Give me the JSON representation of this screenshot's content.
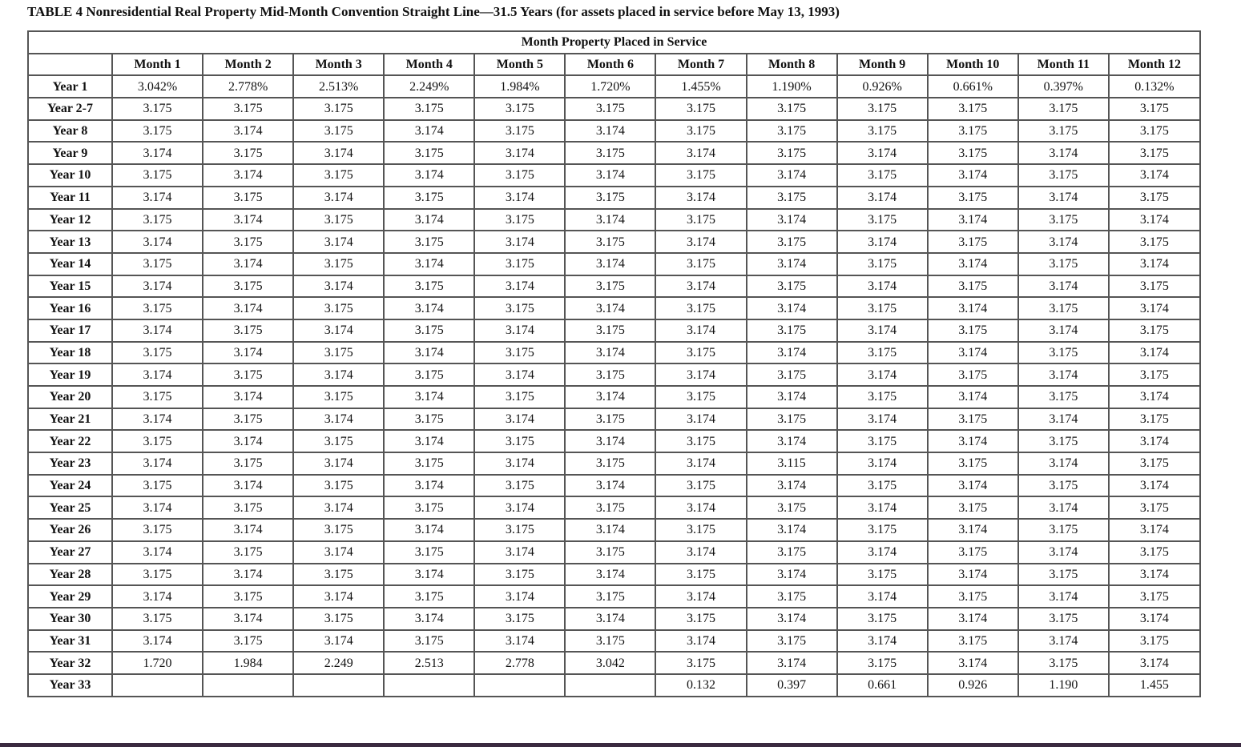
{
  "title": "TABLE 4 Nonresidential Real Property Mid-Month Convention Straight Line—31.5 Years (for assets placed in service before May 13, 1993)",
  "table": {
    "group_header": "Month Property Placed in Service",
    "columns": [
      "Month 1",
      "Month 2",
      "Month 3",
      "Month 4",
      "Month 5",
      "Month 6",
      "Month 7",
      "Month 8",
      "Month 9",
      "Month 10",
      "Month 11",
      "Month 12"
    ],
    "rows": [
      {
        "label": "Year 1",
        "values": [
          "3.042%",
          "2.778%",
          "2.513%",
          "2.249%",
          "1.984%",
          "1.720%",
          "1.455%",
          "1.190%",
          "0.926%",
          "0.661%",
          "0.397%",
          "0.132%"
        ]
      },
      {
        "label": "Year 2-7",
        "values": [
          "3.175",
          "3.175",
          "3.175",
          "3.175",
          "3.175",
          "3.175",
          "3.175",
          "3.175",
          "3.175",
          "3.175",
          "3.175",
          "3.175"
        ]
      },
      {
        "label": "Year 8",
        "values": [
          "3.175",
          "3.174",
          "3.175",
          "3.174",
          "3.175",
          "3.174",
          "3.175",
          "3.175",
          "3.175",
          "3.175",
          "3.175",
          "3.175"
        ]
      },
      {
        "label": "Year 9",
        "values": [
          "3.174",
          "3.175",
          "3.174",
          "3.175",
          "3.174",
          "3.175",
          "3.174",
          "3.175",
          "3.174",
          "3.175",
          "3.174",
          "3.175"
        ]
      },
      {
        "label": "Year 10",
        "values": [
          "3.175",
          "3.174",
          "3.175",
          "3.174",
          "3.175",
          "3.174",
          "3.175",
          "3.174",
          "3.175",
          "3.174",
          "3.175",
          "3.174"
        ]
      },
      {
        "label": "Year 11",
        "values": [
          "3.174",
          "3.175",
          "3.174",
          "3.175",
          "3.174",
          "3.175",
          "3.174",
          "3.175",
          "3.174",
          "3.175",
          "3.174",
          "3.175"
        ]
      },
      {
        "label": "Year 12",
        "values": [
          "3.175",
          "3.174",
          "3.175",
          "3.174",
          "3.175",
          "3.174",
          "3.175",
          "3.174",
          "3.175",
          "3.174",
          "3.175",
          "3.174"
        ]
      },
      {
        "label": "Year 13",
        "values": [
          "3.174",
          "3.175",
          "3.174",
          "3.175",
          "3.174",
          "3.175",
          "3.174",
          "3.175",
          "3.174",
          "3.175",
          "3.174",
          "3.175"
        ]
      },
      {
        "label": "Year 14",
        "values": [
          "3.175",
          "3.174",
          "3.175",
          "3.174",
          "3.175",
          "3.174",
          "3.175",
          "3.174",
          "3.175",
          "3.174",
          "3.175",
          "3.174"
        ]
      },
      {
        "label": "Year 15",
        "values": [
          "3.174",
          "3.175",
          "3.174",
          "3.175",
          "3.174",
          "3.175",
          "3.174",
          "3.175",
          "3.174",
          "3.175",
          "3.174",
          "3.175"
        ]
      },
      {
        "label": "Year 16",
        "values": [
          "3.175",
          "3.174",
          "3.175",
          "3.174",
          "3.175",
          "3.174",
          "3.175",
          "3.174",
          "3.175",
          "3.174",
          "3.175",
          "3.174"
        ]
      },
      {
        "label": "Year 17",
        "values": [
          "3.174",
          "3.175",
          "3.174",
          "3.175",
          "3.174",
          "3.175",
          "3.174",
          "3.175",
          "3.174",
          "3.175",
          "3.174",
          "3.175"
        ]
      },
      {
        "label": "Year 18",
        "values": [
          "3.175",
          "3.174",
          "3.175",
          "3.174",
          "3.175",
          "3.174",
          "3.175",
          "3.174",
          "3.175",
          "3.174",
          "3.175",
          "3.174"
        ]
      },
      {
        "label": "Year 19",
        "values": [
          "3.174",
          "3.175",
          "3.174",
          "3.175",
          "3.174",
          "3.175",
          "3.174",
          "3.175",
          "3.174",
          "3.175",
          "3.174",
          "3.175"
        ]
      },
      {
        "label": "Year 20",
        "values": [
          "3.175",
          "3.174",
          "3.175",
          "3.174",
          "3.175",
          "3.174",
          "3.175",
          "3.174",
          "3.175",
          "3.174",
          "3.175",
          "3.174"
        ]
      },
      {
        "label": "Year 21",
        "values": [
          "3.174",
          "3.175",
          "3.174",
          "3.175",
          "3.174",
          "3.175",
          "3.174",
          "3.175",
          "3.174",
          "3.175",
          "3.174",
          "3.175"
        ]
      },
      {
        "label": "Year 22",
        "values": [
          "3.175",
          "3.174",
          "3.175",
          "3.174",
          "3.175",
          "3.174",
          "3.175",
          "3.174",
          "3.175",
          "3.174",
          "3.175",
          "3.174"
        ]
      },
      {
        "label": "Year 23",
        "values": [
          "3.174",
          "3.175",
          "3.174",
          "3.175",
          "3.174",
          "3.175",
          "3.174",
          "3.115",
          "3.174",
          "3.175",
          "3.174",
          "3.175"
        ]
      },
      {
        "label": "Year 24",
        "values": [
          "3.175",
          "3.174",
          "3.175",
          "3.174",
          "3.175",
          "3.174",
          "3.175",
          "3.174",
          "3.175",
          "3.174",
          "3.175",
          "3.174"
        ]
      },
      {
        "label": "Year 25",
        "values": [
          "3.174",
          "3.175",
          "3.174",
          "3.175",
          "3.174",
          "3.175",
          "3.174",
          "3.175",
          "3.174",
          "3.175",
          "3.174",
          "3.175"
        ]
      },
      {
        "label": "Year 26",
        "values": [
          "3.175",
          "3.174",
          "3.175",
          "3.174",
          "3.175",
          "3.174",
          "3.175",
          "3.174",
          "3.175",
          "3.174",
          "3.175",
          "3.174"
        ]
      },
      {
        "label": "Year 27",
        "values": [
          "3.174",
          "3.175",
          "3.174",
          "3.175",
          "3.174",
          "3.175",
          "3.174",
          "3.175",
          "3.174",
          "3.175",
          "3.174",
          "3.175"
        ]
      },
      {
        "label": "Year 28",
        "values": [
          "3.175",
          "3.174",
          "3.175",
          "3.174",
          "3.175",
          "3.174",
          "3.175",
          "3.174",
          "3.175",
          "3.174",
          "3.175",
          "3.174"
        ]
      },
      {
        "label": "Year 29",
        "values": [
          "3.174",
          "3.175",
          "3.174",
          "3.175",
          "3.174",
          "3.175",
          "3.174",
          "3.175",
          "3.174",
          "3.175",
          "3.174",
          "3.175"
        ]
      },
      {
        "label": "Year 30",
        "values": [
          "3.175",
          "3.174",
          "3.175",
          "3.174",
          "3.175",
          "3.174",
          "3.175",
          "3.174",
          "3.175",
          "3.174",
          "3.175",
          "3.174"
        ]
      },
      {
        "label": "Year 31",
        "values": [
          "3.174",
          "3.175",
          "3.174",
          "3.175",
          "3.174",
          "3.175",
          "3.174",
          "3.175",
          "3.174",
          "3.175",
          "3.174",
          "3.175"
        ]
      },
      {
        "label": "Year 32",
        "values": [
          "1.720",
          "1.984",
          "2.249",
          "2.513",
          "2.778",
          "3.042",
          "3.175",
          "3.174",
          "3.175",
          "3.174",
          "3.175",
          "3.174"
        ]
      },
      {
        "label": "Year 33",
        "values": [
          "",
          "",
          "",
          "",
          "",
          "",
          "0.132",
          "0.397",
          "0.661",
          "0.926",
          "1.190",
          "1.455"
        ]
      }
    ]
  },
  "colors": {
    "grid": "#555555",
    "text": "#111111",
    "bottom_bar": "#3a2a40"
  }
}
